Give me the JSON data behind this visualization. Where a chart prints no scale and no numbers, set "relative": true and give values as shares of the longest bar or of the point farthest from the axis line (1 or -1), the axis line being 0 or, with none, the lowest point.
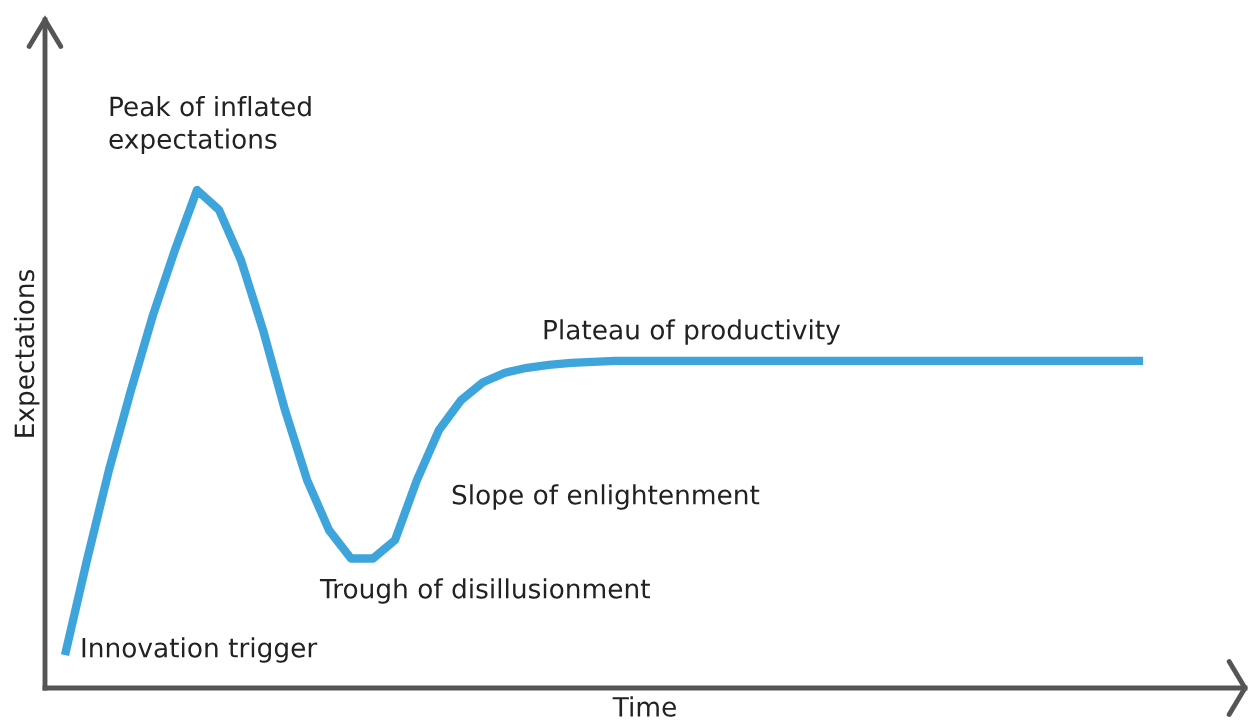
{
  "chart_data": {
    "type": "line",
    "relative": true,
    "xlabel": "Time",
    "ylabel": "Expectations",
    "tick_labels": false,
    "categories": [
      null,
      null,
      null,
      null,
      null,
      null,
      null,
      null,
      null,
      null,
      null,
      null,
      null,
      null,
      null,
      null,
      null,
      null,
      null,
      null,
      null,
      null,
      null,
      null,
      null,
      null,
      null,
      null,
      null,
      null,
      null,
      null,
      null,
      null,
      null,
      null,
      null,
      null,
      null,
      null,
      null,
      null,
      null,
      null,
      null,
      null,
      null,
      null,
      null,
      null
    ],
    "series": [
      {
        "color": "#3ea4dc",
        "values": [
          0.066,
          0.257,
          0.438,
          0.598,
          0.749,
          0.88,
          1.0,
          0.96,
          0.859,
          0.719,
          0.558,
          0.418,
          0.317,
          0.26,
          0.26,
          0.297,
          0.418,
          0.518,
          0.578,
          0.614,
          0.633,
          0.643,
          0.649,
          0.653,
          0.655,
          0.657,
          0.657,
          0.657,
          0.657,
          0.657,
          0.657,
          0.657,
          0.657,
          0.657,
          0.657,
          0.657,
          0.657,
          0.657,
          0.657,
          0.657,
          0.657,
          0.657,
          0.657,
          0.657,
          0.657,
          0.657,
          0.657,
          0.657,
          0.657,
          0.657
        ]
      }
    ],
    "annotations": [
      "Peak of inflated\nexpectations",
      "Plateau of productivity",
      "Slope of enlightenment",
      "Trough of disillusionment",
      "Innovation trigger"
    ]
  }
}
